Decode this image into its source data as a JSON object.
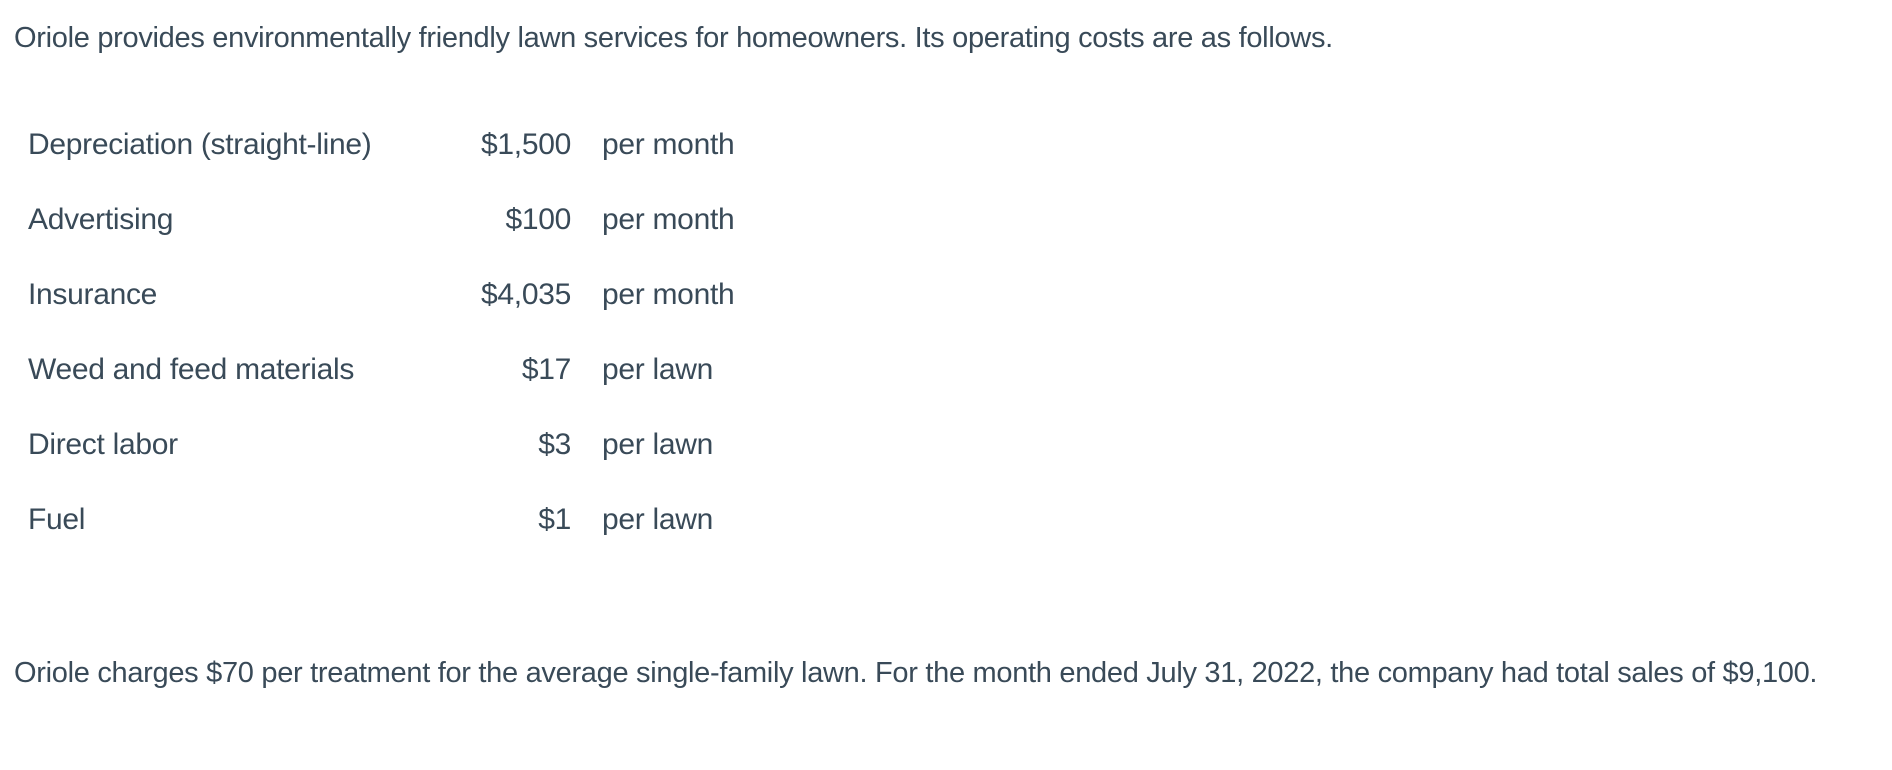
{
  "page": {
    "background_color": "#ffffff",
    "text_color": "#394a58",
    "intro": "Oriole provides environmentally friendly lawn services for homeowners. Its operating costs are as follows.",
    "costs": [
      {
        "label": "Depreciation (straight-line)",
        "amount": "$1,500",
        "unit": "per month"
      },
      {
        "label": "Advertising",
        "amount": "$100",
        "unit": "per month"
      },
      {
        "label": "Insurance",
        "amount": "$4,035",
        "unit": "per month"
      },
      {
        "label": "Weed and feed materials",
        "amount": "$17",
        "unit": "per lawn"
      },
      {
        "label": "Direct labor",
        "amount": "$3",
        "unit": "per lawn"
      },
      {
        "label": "Fuel",
        "amount": "$1",
        "unit": "per lawn"
      }
    ],
    "closing": "Oriole charges $70 per treatment for the average single-family lawn. For the month ended July 31, 2022, the company had total sales of $9,100."
  }
}
